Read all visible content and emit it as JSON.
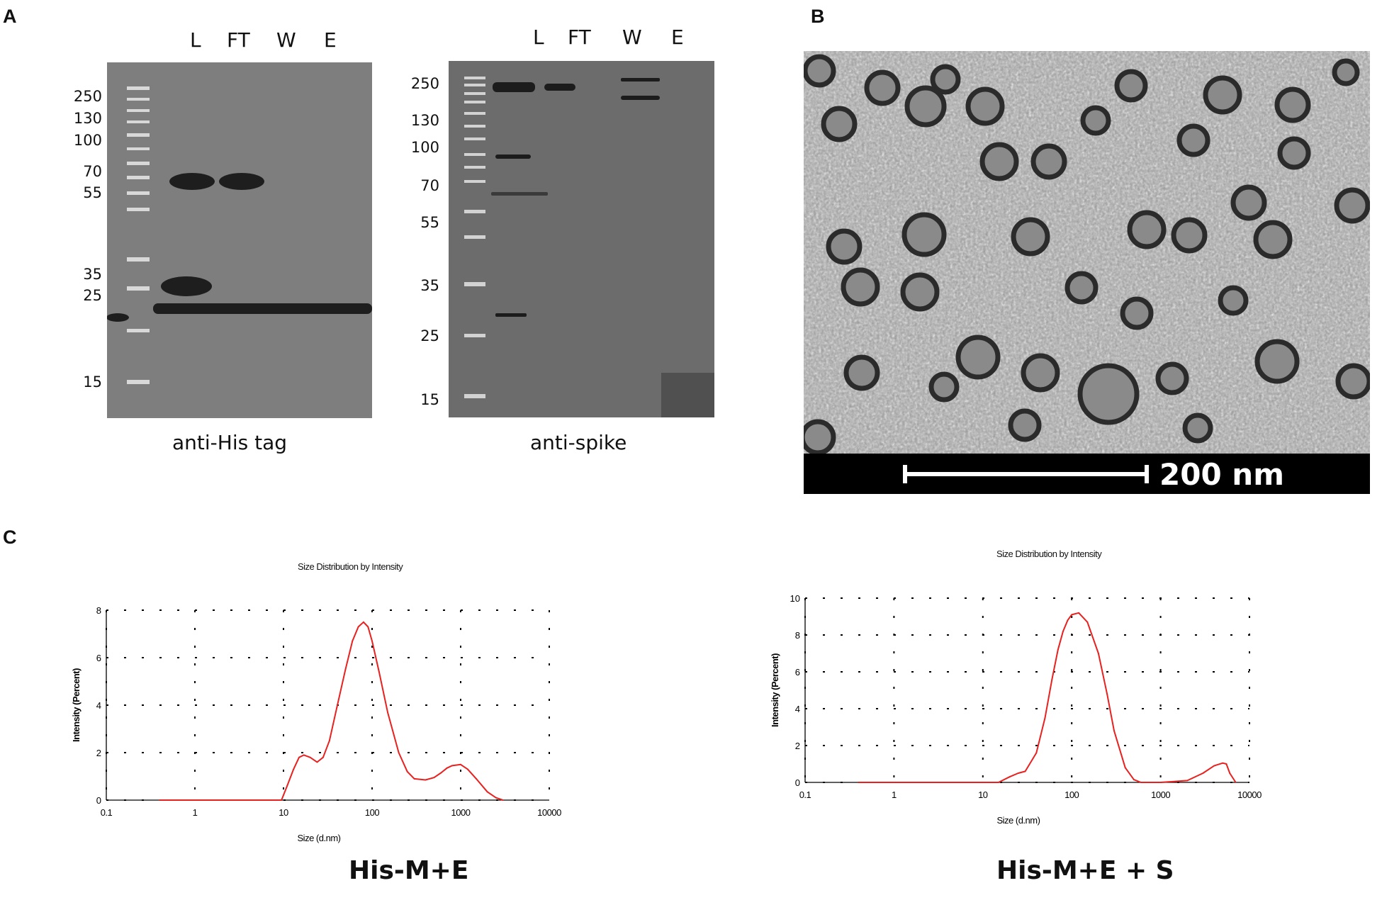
{
  "panels": {
    "a": "A",
    "b": "B",
    "c": "C"
  },
  "blot_left": {
    "lanes": [
      "L",
      "FT",
      "W",
      "E"
    ],
    "markers": [
      "250",
      "130",
      "100",
      "70",
      "55",
      "35",
      "25",
      "15"
    ],
    "label": "anti-His tag"
  },
  "blot_right": {
    "lanes": [
      "L",
      "FT",
      "W",
      "E"
    ],
    "markers": [
      "250",
      "130",
      "100",
      "70",
      "55",
      "35",
      "25",
      "15"
    ],
    "label": "anti-spike"
  },
  "tem": {
    "scale_label": "200 nm"
  },
  "chart_data": [
    {
      "type": "line",
      "title": "Size Distribution by Intensity",
      "xlabel": "Size (d.nm)",
      "ylabel": "Intensity (Percent)",
      "xscale": "log",
      "xlim": [
        0.1,
        10000
      ],
      "ylim": [
        0,
        8
      ],
      "xticks": [
        "0.1",
        "1",
        "10",
        "100",
        "1000",
        "10000"
      ],
      "yticks": [
        "0",
        "2",
        "4",
        "6",
        "8"
      ],
      "grid": true,
      "color": "#e8211f",
      "caption": "His-M+E",
      "x": [
        0.4,
        9.5,
        11,
        13,
        15,
        17,
        20,
        24,
        28,
        33,
        40,
        50,
        60,
        70,
        80,
        90,
        100,
        120,
        150,
        200,
        250,
        300,
        400,
        500,
        600,
        700,
        800,
        1000,
        1200,
        1500,
        2000,
        2500,
        3000
      ],
      "y": [
        0,
        0,
        0.6,
        1.3,
        1.8,
        1.9,
        1.8,
        1.6,
        1.8,
        2.5,
        3.9,
        5.5,
        6.7,
        7.3,
        7.5,
        7.3,
        6.7,
        5.4,
        3.7,
        2.0,
        1.2,
        0.9,
        0.85,
        0.95,
        1.15,
        1.35,
        1.45,
        1.5,
        1.3,
        0.9,
        0.35,
        0.1,
        0
      ]
    },
    {
      "type": "line",
      "title": "Size Distribution by Intensity",
      "xlabel": "Size (d.nm)",
      "ylabel": "Intensity (Percent)",
      "xscale": "log",
      "xlim": [
        0.1,
        10000
      ],
      "ylim": [
        0,
        10
      ],
      "xticks": [
        "0.1",
        "1",
        "10",
        "100",
        "1000",
        "10000"
      ],
      "yticks": [
        "0",
        "2",
        "4",
        "6",
        "8",
        "10"
      ],
      "grid": true,
      "color": "#e8211f",
      "caption": "His-M+E + S",
      "x": [
        0.4,
        0.5,
        0.6,
        0.7,
        0.8,
        0.9,
        3,
        4,
        5,
        6,
        7,
        8,
        9,
        10,
        15,
        20,
        25,
        30,
        40,
        50,
        60,
        70,
        80,
        90,
        100,
        120,
        150,
        200,
        250,
        300,
        400,
        500,
        600,
        1000,
        2000,
        3000,
        4000,
        5000,
        5500,
        6000,
        7000
      ],
      "y": [
        0,
        0,
        0,
        0,
        0,
        0,
        0,
        0,
        0,
        0,
        0,
        0,
        0,
        0,
        0,
        0.3,
        0.5,
        0.6,
        1.6,
        3.5,
        5.6,
        7.2,
        8.2,
        8.8,
        9.1,
        9.2,
        8.7,
        7.0,
        4.8,
        2.8,
        0.8,
        0.15,
        0,
        0,
        0.1,
        0.5,
        0.9,
        1.05,
        1.0,
        0.5,
        0
      ]
    }
  ]
}
